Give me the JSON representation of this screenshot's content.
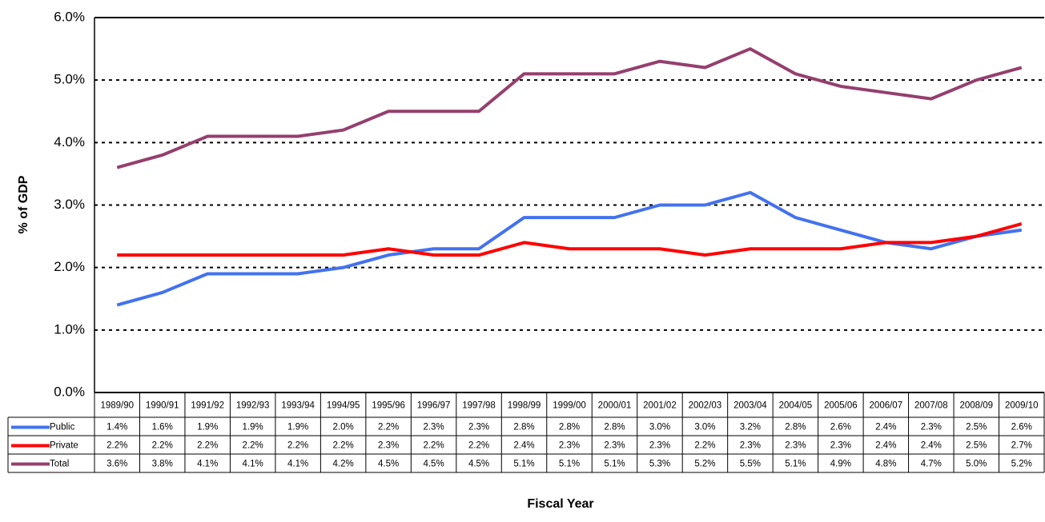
{
  "chart_data": {
    "type": "line",
    "y_label": "% of GDP",
    "x_label": "Fiscal Year",
    "categories": [
      "1989/90",
      "1990/91",
      "1991/92",
      "1992/93",
      "1993/94",
      "1994/95",
      "1995/96",
      "1996/97",
      "1997/98",
      "1998/99",
      "1999/00",
      "2000/01",
      "2001/02",
      "2002/03",
      "2003/04",
      "2004/05",
      "2005/06",
      "2006/07",
      "2007/08",
      "2008/09",
      "2009/10"
    ],
    "series": [
      {
        "name": "Public",
        "color": "#4272f0",
        "values": [
          1.4,
          1.6,
          1.9,
          1.9,
          1.9,
          2.0,
          2.2,
          2.3,
          2.3,
          2.8,
          2.8,
          2.8,
          3.0,
          3.0,
          3.2,
          2.8,
          2.6,
          2.4,
          2.3,
          2.5,
          2.6
        ],
        "value_labels": [
          "1.4%",
          "1.6%",
          "1.9%",
          "1.9%",
          "1.9%",
          "2.0%",
          "2.2%",
          "2.3%",
          "2.3%",
          "2.8%",
          "2.8%",
          "2.8%",
          "3.0%",
          "3.0%",
          "3.2%",
          "2.8%",
          "2.6%",
          "2.4%",
          "2.3%",
          "2.5%",
          "2.6%"
        ]
      },
      {
        "name": "Private",
        "color": "#ff0000",
        "values": [
          2.2,
          2.2,
          2.2,
          2.2,
          2.2,
          2.2,
          2.3,
          2.2,
          2.2,
          2.4,
          2.3,
          2.3,
          2.3,
          2.2,
          2.3,
          2.3,
          2.3,
          2.4,
          2.4,
          2.5,
          2.7
        ],
        "value_labels": [
          "2.2%",
          "2.2%",
          "2.2%",
          "2.2%",
          "2.2%",
          "2.2%",
          "2.3%",
          "2.2%",
          "2.2%",
          "2.4%",
          "2.3%",
          "2.3%",
          "2.3%",
          "2.2%",
          "2.3%",
          "2.3%",
          "2.3%",
          "2.4%",
          "2.4%",
          "2.5%",
          "2.7%"
        ]
      },
      {
        "name": "Total",
        "color": "#953f6e",
        "values": [
          3.6,
          3.8,
          4.1,
          4.1,
          4.1,
          4.2,
          4.5,
          4.5,
          4.5,
          5.1,
          5.1,
          5.1,
          5.3,
          5.2,
          5.5,
          5.1,
          4.9,
          4.8,
          4.7,
          5.0,
          5.2
        ],
        "value_labels": [
          "3.6%",
          "3.8%",
          "4.1%",
          "4.1%",
          "4.1%",
          "4.2%",
          "4.5%",
          "4.5%",
          "4.5%",
          "5.1%",
          "5.1%",
          "5.1%",
          "5.3%",
          "5.2%",
          "5.5%",
          "5.1%",
          "4.9%",
          "4.8%",
          "4.7%",
          "5.0%",
          "5.2%"
        ]
      }
    ],
    "ylim": [
      0,
      6
    ],
    "yticks": [
      {
        "value": 0,
        "label": "0.0%"
      },
      {
        "value": 1,
        "label": "1.0%"
      },
      {
        "value": 2,
        "label": "2.0%"
      },
      {
        "value": 3,
        "label": "3.0%"
      },
      {
        "value": 4,
        "label": "4.0%"
      },
      {
        "value": 5,
        "label": "5.0%"
      },
      {
        "value": 6,
        "label": "6.0%"
      }
    ],
    "grid": true
  }
}
